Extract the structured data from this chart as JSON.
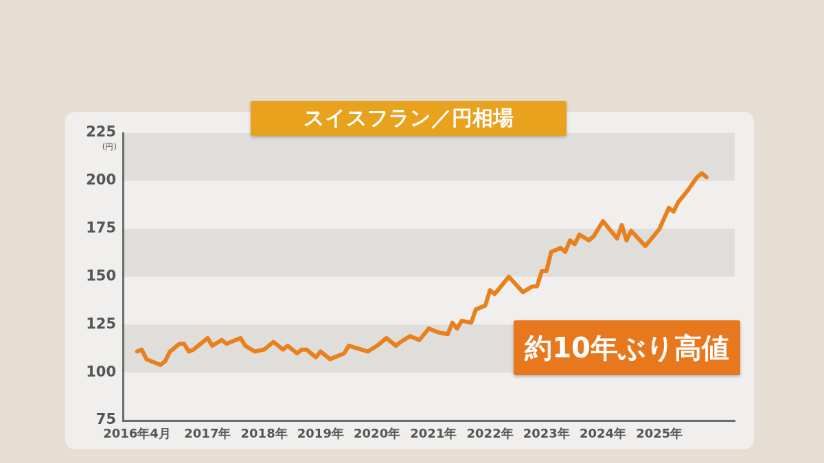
{
  "chart_data": {
    "type": "line",
    "title": "スイスフラン／円相場",
    "ylabel": "(円)",
    "annotations": [
      "約10年ぶり高値"
    ],
    "x": [
      "2016-04",
      "2016-05",
      "2016-06",
      "2016-07",
      "2016-09",
      "2016-10",
      "2016-11",
      "2017-01",
      "2017-02",
      "2017-03",
      "2017-04",
      "2017-07",
      "2017-08",
      "2017-10",
      "2017-11",
      "2018-02",
      "2018-03",
      "2018-05",
      "2018-07",
      "2018-09",
      "2018-11",
      "2018-12",
      "2019-02",
      "2019-03",
      "2019-04",
      "2019-06",
      "2019-07",
      "2019-09",
      "2019-11",
      "2019-12",
      "2020-01",
      "2020-05",
      "2020-07",
      "2020-09",
      "2020-11",
      "2020-12",
      "2021-02",
      "2021-04",
      "2021-06",
      "2021-08",
      "2021-10",
      "2021-11",
      "2021-12",
      "2022-01",
      "2022-03",
      "2022-04",
      "2022-06",
      "2022-07",
      "2022-08",
      "2022-11",
      "2023-02",
      "2023-04",
      "2023-05",
      "2023-06",
      "2023-07",
      "2023-08",
      "2023-10",
      "2023-11",
      "2023-12",
      "2024-01",
      "2024-02",
      "2024-04",
      "2024-05",
      "2024-07",
      "2024-09",
      "2024-10",
      "2024-11",
      "2024-12",
      "2025-01",
      "2025-04",
      "2025-06",
      "2025-07",
      "2025-09",
      "2025-10",
      "2025-11",
      "2026-01",
      "2026-03",
      "2026-04",
      "2026-05"
    ],
    "series": [
      {
        "color": "#e8801e",
        "values": [
          111,
          112,
          107,
          106,
          104,
          106,
          111,
          115,
          115,
          111,
          112,
          118,
          114,
          117,
          115,
          118,
          114,
          111,
          112,
          116,
          112,
          114,
          110,
          112,
          112,
          108,
          111,
          107,
          109,
          110,
          114,
          111,
          114,
          118,
          114,
          116,
          119,
          117,
          123,
          121,
          120,
          126,
          123,
          127,
          126,
          133,
          135,
          143,
          141,
          150,
          142,
          145,
          145,
          153,
          153,
          163,
          165,
          163,
          169,
          167,
          172,
          169,
          171,
          179,
          173,
          170,
          177,
          169,
          174,
          166,
          172,
          175,
          186,
          184,
          189,
          195,
          202,
          204,
          202
        ]
      }
    ],
    "xlim": [
      "2016-01",
      "2026-11"
    ],
    "xticks": [
      {
        "value": "2016-04",
        "label": "2016年4月"
      },
      {
        "value": "2017-07",
        "label": "2017年"
      },
      {
        "value": "2018-07",
        "label": "2018年"
      },
      {
        "value": "2019-07",
        "label": "2019年"
      },
      {
        "value": "2020-07",
        "label": "2020年"
      },
      {
        "value": "2021-07",
        "label": "2021年"
      },
      {
        "value": "2022-07",
        "label": "2022年"
      },
      {
        "value": "2023-07",
        "label": "2023年"
      },
      {
        "value": "2024-07",
        "label": "2024年"
      },
      {
        "value": "2025-07",
        "label": "2025年"
      }
    ],
    "ylim": [
      75,
      225
    ],
    "yticks": [
      75,
      100,
      125,
      150,
      175,
      200,
      225
    ],
    "bands": [
      {
        "axis": "y",
        "from": 100,
        "to": 125,
        "color": "#dfdedb"
      },
      {
        "axis": "y",
        "from": 150,
        "to": 175,
        "color": "#dfdedb"
      },
      {
        "axis": "y",
        "from": 200,
        "to": 225,
        "color": "#dfdedb"
      }
    ],
    "marker": "none",
    "line_style": "solid"
  }
}
